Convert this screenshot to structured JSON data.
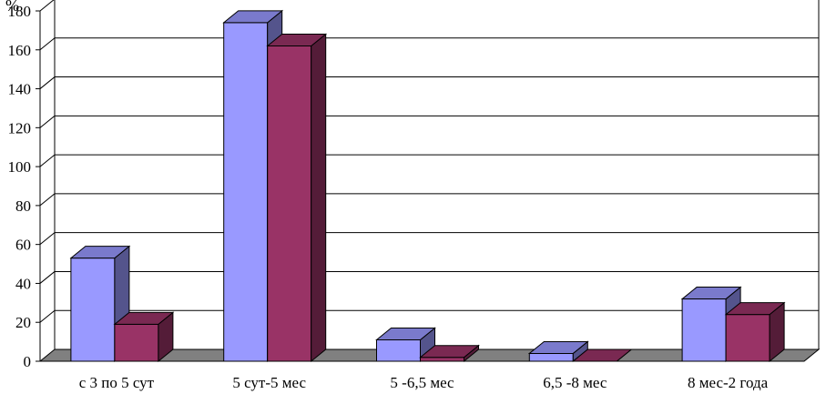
{
  "chart_data": {
    "type": "bar",
    "style": "3d-clustered-column",
    "unit_label": "%",
    "categories": [
      "с 3 по 5 сут",
      "5 сут-5 мес",
      "5 -6,5 мес",
      "6,5 -8 мес",
      "8 мес-2 года"
    ],
    "series": [
      {
        "values": [
          53,
          174,
          11,
          4,
          32
        ],
        "color": "#9999ff"
      },
      {
        "values": [
          19,
          162,
          2,
          0,
          24
        ],
        "color": "#993366"
      }
    ],
    "ylim": [
      0,
      180
    ],
    "yticks": [
      "0",
      "20",
      "40",
      "60",
      "80",
      "100",
      "120",
      "140",
      "160",
      "180"
    ],
    "grid": true,
    "legend": "none",
    "floor_color": "#808080"
  }
}
